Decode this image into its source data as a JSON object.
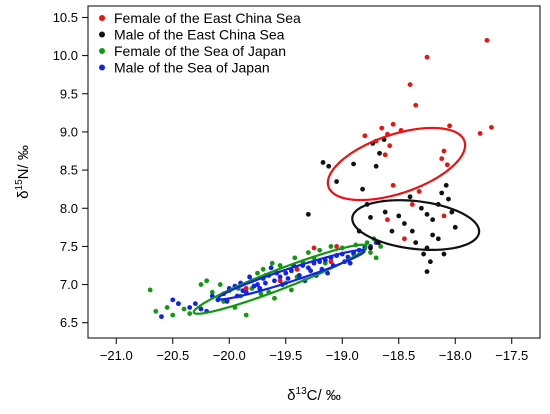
{
  "chart_data": {
    "type": "scatter",
    "title": "",
    "xlabel": {
      "main": "δ",
      "sup": "13",
      "rest": "C/ ‰"
    },
    "ylabel": {
      "main": "δ",
      "sup": "15",
      "rest": "N/ ‰"
    },
    "xlim": [
      -21.25,
      -17.25
    ],
    "ylim": [
      6.3,
      10.65
    ],
    "xticks": [
      -21.0,
      -20.5,
      -20.0,
      -19.5,
      -19.0,
      -18.5,
      -18.0,
      -17.5
    ],
    "xtick_labels": [
      "−21.0",
      "−20.5",
      "−20.0",
      "−19.5",
      "−19.0",
      "−18.5",
      "−18.0",
      "−17.5"
    ],
    "yticks": [
      6.5,
      7.0,
      7.5,
      8.0,
      8.5,
      9.0,
      9.5,
      10.0,
      10.5
    ],
    "ytick_labels": [
      "6.5",
      "7.0",
      "7.5",
      "8.0",
      "8.5",
      "9.0",
      "9.5",
      "10.0",
      "10.5"
    ],
    "grid": false,
    "legend_position": "top-left",
    "series": [
      {
        "name": "Female of the East China Sea",
        "color": "#ee1111",
        "points": [
          [
            -17.72,
            10.2
          ],
          [
            -18.25,
            9.98
          ],
          [
            -18.4,
            9.62
          ],
          [
            -18.35,
            9.35
          ],
          [
            -18.05,
            9.08
          ],
          [
            -17.68,
            9.06
          ],
          [
            -17.78,
            8.98
          ],
          [
            -18.55,
            9.1
          ],
          [
            -18.65,
            9.05
          ],
          [
            -18.6,
            8.97
          ],
          [
            -18.48,
            9.02
          ],
          [
            -18.8,
            8.95
          ],
          [
            -18.7,
            8.88
          ],
          [
            -18.58,
            8.82
          ],
          [
            -18.1,
            8.75
          ],
          [
            -18.12,
            8.65
          ],
          [
            -18.07,
            8.57
          ],
          [
            -18.62,
            8.7
          ],
          [
            -18.55,
            8.3
          ],
          [
            -18.32,
            8.22
          ],
          [
            -18.38,
            8.05
          ],
          [
            -18.1,
            7.9
          ],
          [
            -18.6,
            7.85
          ],
          [
            -18.45,
            7.6
          ],
          [
            -19.05,
            7.5
          ],
          [
            -19.25,
            7.48
          ],
          [
            -19.1,
            7.3
          ],
          [
            -19.4,
            7.2
          ],
          [
            -19.55,
            7.05
          ],
          [
            -19.85,
            6.95
          ]
        ],
        "ellipse": {
          "cx": -18.52,
          "cy": 8.58,
          "rx": 0.68,
          "ry": 0.36,
          "angle_deg": 32
        }
      },
      {
        "name": "Male of the East China Sea",
        "color": "#111111",
        "points": [
          [
            -19.17,
            8.6
          ],
          [
            -19.12,
            8.55
          ],
          [
            -19.05,
            8.35
          ],
          [
            -18.9,
            8.58
          ],
          [
            -18.7,
            8.55
          ],
          [
            -18.67,
            8.72
          ],
          [
            -18.63,
            8.9
          ],
          [
            -18.73,
            8.85
          ],
          [
            -18.82,
            8.25
          ],
          [
            -18.78,
            8.05
          ],
          [
            -18.75,
            7.88
          ],
          [
            -18.62,
            7.95
          ],
          [
            -18.5,
            7.9
          ],
          [
            -18.45,
            7.8
          ],
          [
            -18.4,
            8.15
          ],
          [
            -18.3,
            8.0
          ],
          [
            -18.25,
            7.92
          ],
          [
            -18.2,
            7.85
          ],
          [
            -18.15,
            8.05
          ],
          [
            -18.12,
            8.2
          ],
          [
            -18.08,
            8.3
          ],
          [
            -18.06,
            8.12
          ],
          [
            -18.03,
            7.95
          ],
          [
            -18.0,
            7.75
          ],
          [
            -18.15,
            7.6
          ],
          [
            -18.2,
            7.65
          ],
          [
            -18.25,
            7.48
          ],
          [
            -18.22,
            7.3
          ],
          [
            -18.25,
            7.17
          ],
          [
            -18.35,
            7.55
          ],
          [
            -18.38,
            7.7
          ],
          [
            -18.56,
            7.7
          ],
          [
            -18.68,
            7.55
          ],
          [
            -18.75,
            7.48
          ],
          [
            -18.85,
            7.7
          ],
          [
            -19.3,
            7.92
          ],
          [
            -18.1,
            7.4
          ],
          [
            -18.28,
            7.4
          ]
        ],
        "ellipse": {
          "cx": -18.35,
          "cy": 7.78,
          "rx": 0.57,
          "ry": 0.31,
          "angle_deg": -12
        }
      },
      {
        "name": "Female of the Sea of Japan",
        "color": "#119911",
        "points": [
          [
            -20.7,
            6.93
          ],
          [
            -20.65,
            6.65
          ],
          [
            -20.55,
            6.7
          ],
          [
            -20.5,
            6.6
          ],
          [
            -20.45,
            6.75
          ],
          [
            -20.4,
            6.68
          ],
          [
            -20.35,
            6.62
          ],
          [
            -20.25,
            7.0
          ],
          [
            -20.2,
            7.05
          ],
          [
            -20.15,
            6.9
          ],
          [
            -20.1,
            6.8
          ],
          [
            -20.05,
            6.78
          ],
          [
            -20.0,
            6.92
          ],
          [
            -19.95,
            6.7
          ],
          [
            -19.9,
            6.85
          ],
          [
            -19.85,
            6.6
          ],
          [
            -19.8,
            6.95
          ],
          [
            -19.75,
            7.15
          ],
          [
            -19.7,
            7.2
          ],
          [
            -19.65,
            6.9
          ],
          [
            -19.6,
            6.82
          ],
          [
            -19.55,
            7.25
          ],
          [
            -19.5,
            7.02
          ],
          [
            -19.45,
            6.93
          ],
          [
            -19.4,
            7.1
          ],
          [
            -19.35,
            7.3
          ],
          [
            -19.3,
            7.42
          ],
          [
            -19.25,
            7.35
          ],
          [
            -19.2,
            7.45
          ],
          [
            -19.15,
            7.28
          ],
          [
            -19.1,
            7.5
          ],
          [
            -19.05,
            7.38
          ],
          [
            -19.0,
            7.48
          ],
          [
            -18.95,
            7.32
          ],
          [
            -18.9,
            7.4
          ],
          [
            -18.85,
            7.45
          ],
          [
            -18.8,
            7.5
          ],
          [
            -18.75,
            7.42
          ],
          [
            -18.7,
            7.35
          ],
          [
            -18.72,
            7.6
          ],
          [
            -18.78,
            7.55
          ],
          [
            -18.88,
            7.52
          ],
          [
            -19.42,
            7.35
          ],
          [
            -19.62,
            7.28
          ],
          [
            -19.72,
            6.88
          ],
          [
            -19.92,
            6.95
          ],
          [
            -20.08,
            7.0
          ],
          [
            -19.68,
            7.12
          ],
          [
            -18.66,
            7.5
          ]
        ],
        "ellipse": {
          "cx": -19.55,
          "cy": 7.07,
          "rx": 0.88,
          "ry": 0.12,
          "angle_deg": 30
        }
      },
      {
        "name": "Male of the Sea of Japan",
        "color": "#1122ee",
        "points": [
          [
            -20.6,
            6.58
          ],
          [
            -20.5,
            6.8
          ],
          [
            -20.45,
            6.75
          ],
          [
            -20.35,
            6.7
          ],
          [
            -20.3,
            6.75
          ],
          [
            -20.25,
            6.68
          ],
          [
            -20.2,
            6.65
          ],
          [
            -20.15,
            6.85
          ],
          [
            -20.05,
            6.88
          ],
          [
            -20.0,
            6.95
          ],
          [
            -19.95,
            6.98
          ],
          [
            -19.9,
            7.02
          ],
          [
            -19.85,
            6.9
          ],
          [
            -19.8,
            7.05
          ],
          [
            -19.75,
            7.0
          ],
          [
            -19.7,
            7.08
          ],
          [
            -19.65,
            7.12
          ],
          [
            -19.6,
            7.05
          ],
          [
            -19.55,
            7.1
          ],
          [
            -19.5,
            7.15
          ],
          [
            -19.45,
            7.18
          ],
          [
            -19.4,
            7.2
          ],
          [
            -19.35,
            7.25
          ],
          [
            -19.3,
            7.22
          ],
          [
            -19.25,
            7.28
          ],
          [
            -19.2,
            7.3
          ],
          [
            -19.15,
            7.32
          ],
          [
            -19.1,
            7.35
          ],
          [
            -19.05,
            7.38
          ],
          [
            -19.0,
            7.4
          ],
          [
            -18.95,
            7.36
          ],
          [
            -18.9,
            7.42
          ],
          [
            -18.85,
            7.45
          ],
          [
            -18.8,
            7.48
          ],
          [
            -18.75,
            7.5
          ],
          [
            -18.7,
            7.55
          ],
          [
            -19.88,
            6.92
          ],
          [
            -19.78,
            6.98
          ],
          [
            -19.68,
            7.02
          ],
          [
            -19.58,
            7.15
          ],
          [
            -19.48,
            7.08
          ],
          [
            -19.38,
            7.12
          ],
          [
            -19.28,
            7.18
          ],
          [
            -19.18,
            7.2
          ],
          [
            -19.08,
            7.25
          ],
          [
            -18.98,
            7.3
          ],
          [
            -19.93,
            6.85
          ],
          [
            -19.73,
            6.95
          ],
          [
            -19.53,
            7.0
          ],
          [
            -19.33,
            7.05
          ],
          [
            -19.13,
            7.15
          ],
          [
            -18.93,
            7.28
          ],
          [
            -19.63,
            7.22
          ],
          [
            -19.43,
            7.25
          ],
          [
            -19.23,
            7.12
          ],
          [
            -20.1,
            6.8
          ],
          [
            -20.02,
            6.78
          ],
          [
            -19.82,
            7.1
          ]
        ],
        "ellipse": {
          "cx": -19.45,
          "cy": 7.13,
          "rx": 0.72,
          "ry": 0.08,
          "angle_deg": 26
        }
      }
    ]
  }
}
